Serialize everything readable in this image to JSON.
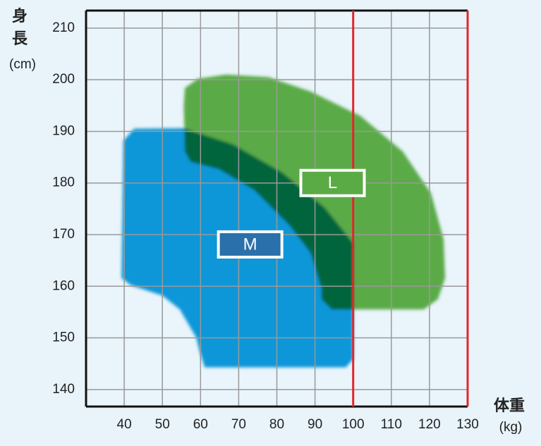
{
  "chart_data": {
    "type": "region",
    "ylabel": [
      "身",
      "長",
      "(cm)"
    ],
    "xlabel": [
      "体重",
      "(kg)"
    ],
    "xlim": [
      30,
      130
    ],
    "xticks": [
      40,
      50,
      60,
      70,
      80,
      90,
      100,
      110,
      120,
      130
    ],
    "ylim": [
      136.7,
      213.4
    ],
    "yticks": [
      140,
      150,
      160,
      170,
      180,
      190,
      200,
      210
    ],
    "grid": true,
    "reference_lines": {
      "x": [
        100,
        130
      ],
      "color": "#e3262b"
    },
    "regions": [
      {
        "name": "M",
        "color": "#0e97d8",
        "label_color": "#2a70aa",
        "label_at": [
          73,
          168.1
        ],
        "points": [
          [
            39.8,
            188.2
          ],
          [
            42.6,
            190.5
          ],
          [
            55.6,
            190.6
          ],
          [
            68.5,
            187.5
          ],
          [
            81.5,
            182
          ],
          [
            92.6,
            175.2
          ],
          [
            100,
            168.4
          ],
          [
            100,
            145.9
          ],
          [
            98.1,
            144.3
          ],
          [
            61.1,
            144.3
          ],
          [
            59.8,
            147.3
          ],
          [
            58.9,
            150
          ],
          [
            54.6,
            155.5
          ],
          [
            50,
            158.2
          ],
          [
            41.7,
            160.2
          ],
          [
            39.3,
            161.6
          ]
        ]
      },
      {
        "name": "L",
        "color": "#5aab46",
        "label_color": "#5aab46",
        "label_at": [
          94.6,
          180
        ],
        "points": [
          [
            55.9,
            198.4
          ],
          [
            59.3,
            200.2
          ],
          [
            66.7,
            201
          ],
          [
            77.8,
            200.5
          ],
          [
            88.9,
            197.7
          ],
          [
            101.9,
            193
          ],
          [
            113,
            186.1
          ],
          [
            120.4,
            178
          ],
          [
            123.7,
            169.1
          ],
          [
            124.1,
            161.6
          ],
          [
            122.2,
            157.5
          ],
          [
            118.5,
            155.5
          ],
          [
            94.4,
            155.5
          ],
          [
            91.7,
            157.5
          ],
          [
            91.7,
            159.5
          ],
          [
            88.9,
            166.4
          ],
          [
            83.3,
            171.8
          ],
          [
            74.1,
            178.6
          ],
          [
            64.8,
            182.7
          ],
          [
            57.4,
            184.1
          ],
          [
            55.9,
            186.1
          ],
          [
            55.6,
            195
          ]
        ]
      }
    ]
  }
}
